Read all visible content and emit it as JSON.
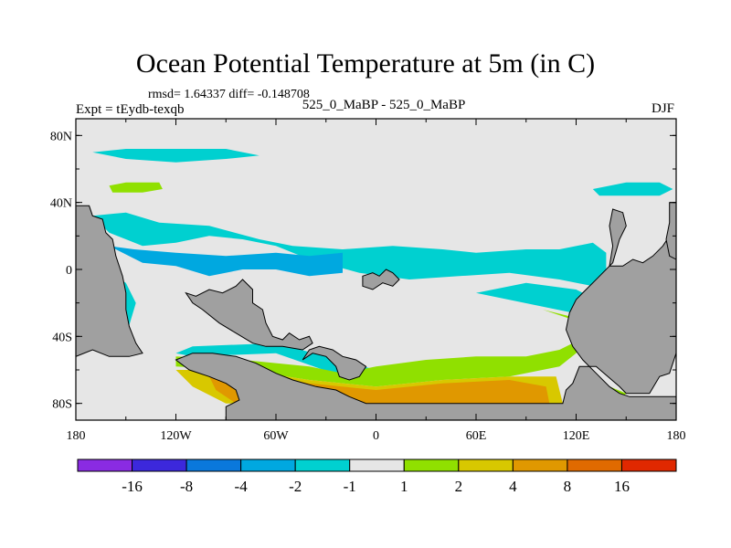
{
  "title": "Ocean Potential Temperature at 5m (in C)",
  "stats": "rmsd= 1.64337 diff= -0.148708",
  "expt": "Expt = tEydb-texqb",
  "case": "525_0_MaBP - 525_0_MaBP",
  "season": "DJF",
  "map": {
    "lon_range": [
      -180,
      180
    ],
    "lat_range": [
      -90,
      90
    ],
    "lon_ticks": [
      {
        "value": -180,
        "label": "180"
      },
      {
        "value": -120,
        "label": "120W"
      },
      {
        "value": -60,
        "label": "60W"
      },
      {
        "value": 0,
        "label": "0"
      },
      {
        "value": 60,
        "label": "60E"
      },
      {
        "value": 120,
        "label": "120E"
      },
      {
        "value": 180,
        "label": "180"
      }
    ],
    "lat_ticks": [
      {
        "value": 80,
        "label": "80N"
      },
      {
        "value": 40,
        "label": "40N"
      },
      {
        "value": 0,
        "label": "0"
      },
      {
        "value": -40,
        "label": "40S"
      },
      {
        "value": -80,
        "label": "80S"
      }
    ],
    "land_color": "#a0a0a0",
    "background_color": "#e6e6e6",
    "land": [
      [
        [
          -180,
          38
        ],
        [
          -172,
          38
        ],
        [
          -170,
          32
        ],
        [
          -164,
          30
        ],
        [
          -162,
          22
        ],
        [
          -158,
          18
        ],
        [
          -156,
          8
        ],
        [
          -152,
          -4
        ],
        [
          -150,
          -14
        ],
        [
          -150,
          -24
        ],
        [
          -148,
          -34
        ],
        [
          -144,
          -44
        ],
        [
          -140,
          -50
        ],
        [
          -148,
          -52
        ],
        [
          -160,
          -52
        ],
        [
          -170,
          -48
        ],
        [
          -180,
          -52
        ]
      ],
      [
        [
          -114,
          -14
        ],
        [
          -108,
          -16
        ],
        [
          -100,
          -12
        ],
        [
          -92,
          -14
        ],
        [
          -84,
          -10
        ],
        [
          -80,
          -6
        ],
        [
          -74,
          -12
        ],
        [
          -74,
          -20
        ],
        [
          -68,
          -24
        ],
        [
          -66,
          -32
        ],
        [
          -62,
          -40
        ],
        [
          -56,
          -42
        ],
        [
          -52,
          -38
        ],
        [
          -46,
          -42
        ],
        [
          -40,
          -40
        ],
        [
          -38,
          -44
        ],
        [
          -44,
          -48
        ],
        [
          -56,
          -46
        ],
        [
          -66,
          -46
        ],
        [
          -74,
          -44
        ],
        [
          -84,
          -38
        ],
        [
          -94,
          -32
        ],
        [
          -104,
          -24
        ],
        [
          -110,
          -20
        ]
      ],
      [
        [
          -120,
          -54
        ],
        [
          -112,
          -60
        ],
        [
          -100,
          -64
        ],
        [
          -90,
          -68
        ],
        [
          -84,
          -72
        ],
        [
          -82,
          -78
        ],
        [
          -86,
          -80
        ],
        [
          -90,
          -82
        ],
        [
          -90,
          -90
        ],
        [
          180,
          -90
        ],
        [
          180,
          -76
        ],
        [
          152,
          -76
        ],
        [
          146,
          -74
        ],
        [
          140,
          -70
        ],
        [
          132,
          -62
        ],
        [
          124,
          -54
        ],
        [
          118,
          -46
        ],
        [
          114,
          -36
        ],
        [
          116,
          -26
        ],
        [
          120,
          -18
        ],
        [
          126,
          -12
        ],
        [
          130,
          -8
        ],
        [
          136,
          -2
        ],
        [
          140,
          2
        ],
        [
          148,
          2
        ],
        [
          154,
          6
        ],
        [
          160,
          4
        ],
        [
          166,
          8
        ],
        [
          172,
          14
        ],
        [
          176,
          20
        ],
        [
          180,
          22
        ],
        [
          180,
          -50
        ],
        [
          176,
          -62
        ],
        [
          170,
          -64
        ],
        [
          164,
          -74
        ],
        [
          150,
          -74
        ],
        [
          146,
          -70
        ],
        [
          132,
          -58
        ],
        [
          122,
          -58
        ],
        [
          118,
          -68
        ],
        [
          114,
          -72
        ],
        [
          112,
          -80
        ],
        [
          -6,
          -80
        ],
        [
          -16,
          -76
        ],
        [
          -24,
          -72
        ],
        [
          -36,
          -70
        ],
        [
          -50,
          -66
        ],
        [
          -60,
          -62
        ],
        [
          -72,
          -56
        ],
        [
          -84,
          -52
        ],
        [
          -98,
          -50
        ],
        [
          -110,
          -50
        ]
      ],
      [
        [
          -44,
          -54
        ],
        [
          -38,
          -50
        ],
        [
          -30,
          -52
        ],
        [
          -24,
          -58
        ],
        [
          -22,
          -64
        ],
        [
          -16,
          -66
        ],
        [
          -10,
          -64
        ],
        [
          -6,
          -58
        ],
        [
          -12,
          -54
        ],
        [
          -20,
          -52
        ],
        [
          -26,
          -48
        ],
        [
          -34,
          -46
        ],
        [
          -40,
          -48
        ]
      ],
      [
        [
          -8,
          -4
        ],
        [
          -2,
          -2
        ],
        [
          2,
          -4
        ],
        [
          6,
          0
        ],
        [
          10,
          -2
        ],
        [
          14,
          -6
        ],
        [
          10,
          -10
        ],
        [
          4,
          -8
        ],
        [
          -2,
          -12
        ],
        [
          -8,
          -10
        ]
      ],
      [
        [
          142,
          36
        ],
        [
          148,
          34
        ],
        [
          150,
          26
        ],
        [
          146,
          18
        ],
        [
          142,
          4
        ],
        [
          140,
          2
        ],
        [
          142,
          14
        ],
        [
          140,
          26
        ]
      ],
      [
        [
          176,
          40
        ],
        [
          180,
          40
        ],
        [
          180,
          6
        ],
        [
          176,
          8
        ],
        [
          174,
          18
        ],
        [
          176,
          28
        ]
      ]
    ],
    "contours": [
      {
        "color": "#00d0d0",
        "points": [
          [
            -170,
            32
          ],
          [
            -160,
            22
          ],
          [
            -150,
            18
          ],
          [
            -140,
            14
          ],
          [
            -120,
            16
          ],
          [
            -100,
            20
          ],
          [
            -80,
            18
          ],
          [
            -60,
            14
          ],
          [
            -40,
            6
          ],
          [
            -10,
            -2
          ],
          [
            20,
            -6
          ],
          [
            50,
            -4
          ],
          [
            80,
            -2
          ],
          [
            110,
            -6
          ],
          [
            130,
            -10
          ],
          [
            138,
            -4
          ],
          [
            138,
            10
          ],
          [
            130,
            16
          ],
          [
            110,
            12
          ],
          [
            90,
            12
          ],
          [
            60,
            10
          ],
          [
            40,
            12
          ],
          [
            10,
            14
          ],
          [
            -20,
            12
          ],
          [
            -50,
            14
          ],
          [
            -70,
            18
          ],
          [
            -100,
            26
          ],
          [
            -130,
            28
          ],
          [
            -150,
            34
          ]
        ]
      },
      {
        "color": "#00a8e0",
        "points": [
          [
            -160,
            14
          ],
          [
            -140,
            4
          ],
          [
            -120,
            2
          ],
          [
            -100,
            -4
          ],
          [
            -80,
            0
          ],
          [
            -60,
            0
          ],
          [
            -40,
            -4
          ],
          [
            -20,
            -2
          ],
          [
            -20,
            10
          ],
          [
            -40,
            8
          ],
          [
            -60,
            10
          ],
          [
            -90,
            8
          ],
          [
            -120,
            10
          ],
          [
            -145,
            12
          ]
        ]
      },
      {
        "color": "#00d0d0",
        "points": [
          [
            -180,
            10
          ],
          [
            -150,
            -8
          ],
          [
            -144,
            -20
          ],
          [
            -150,
            -40
          ],
          [
            -170,
            -42
          ],
          [
            -180,
            -40
          ]
        ]
      },
      {
        "color": "#00d0d0",
        "points": [
          [
            -170,
            70
          ],
          [
            -150,
            66
          ],
          [
            -120,
            64
          ],
          [
            -90,
            66
          ],
          [
            -70,
            68
          ],
          [
            -90,
            72
          ],
          [
            -120,
            72
          ],
          [
            -150,
            72
          ]
        ]
      },
      {
        "color": "#00d0d0",
        "points": [
          [
            130,
            48
          ],
          [
            150,
            52
          ],
          [
            170,
            52
          ],
          [
            178,
            48
          ],
          [
            170,
            44
          ],
          [
            150,
            44
          ],
          [
            134,
            44
          ]
        ]
      },
      {
        "color": "#90e000",
        "points": [
          [
            -160,
            50
          ],
          [
            -150,
            52
          ],
          [
            -130,
            52
          ],
          [
            -128,
            48
          ],
          [
            -140,
            46
          ],
          [
            -158,
            46
          ]
        ]
      },
      {
        "color": "#00d0d0",
        "points": [
          [
            60,
            -14
          ],
          [
            90,
            -8
          ],
          [
            120,
            -12
          ],
          [
            136,
            -20
          ],
          [
            140,
            -28
          ],
          [
            136,
            -36
          ],
          [
            120,
            -48
          ],
          [
            90,
            -54
          ],
          [
            40,
            -56
          ],
          [
            0,
            -60
          ],
          [
            -30,
            -52
          ],
          [
            -60,
            -44
          ],
          [
            -110,
            -46
          ],
          [
            -120,
            -50
          ],
          [
            -110,
            -52
          ],
          [
            -60,
            -50
          ],
          [
            -20,
            -64
          ],
          [
            30,
            -64
          ],
          [
            90,
            -60
          ],
          [
            130,
            -44
          ],
          [
            138,
            -30
          ]
        ]
      },
      {
        "color": "#90e000",
        "points": [
          [
            100,
            -24
          ],
          [
            116,
            -28
          ],
          [
            122,
            -36
          ],
          [
            118,
            -44
          ],
          [
            110,
            -48
          ],
          [
            90,
            -52
          ],
          [
            60,
            -52
          ],
          [
            30,
            -54
          ],
          [
            0,
            -58
          ],
          [
            -20,
            -62
          ],
          [
            -40,
            -58
          ],
          [
            -80,
            -54
          ],
          [
            -120,
            -52
          ],
          [
            -120,
            -58
          ],
          [
            -80,
            -60
          ],
          [
            -40,
            -66
          ],
          [
            0,
            -70
          ],
          [
            40,
            -66
          ],
          [
            80,
            -64
          ],
          [
            110,
            -58
          ],
          [
            120,
            -50
          ],
          [
            124,
            -40
          ],
          [
            118,
            -30
          ]
        ]
      },
      {
        "color": "#d8c800",
        "points": [
          [
            -120,
            -60
          ],
          [
            -80,
            -60
          ],
          [
            -40,
            -66
          ],
          [
            0,
            -70
          ],
          [
            40,
            -66
          ],
          [
            80,
            -64
          ],
          [
            108,
            -64
          ],
          [
            112,
            -80
          ],
          [
            -90,
            -80
          ],
          [
            -110,
            -70
          ]
        ]
      },
      {
        "color": "#e09800",
        "points": [
          [
            -100,
            -64
          ],
          [
            -70,
            -62
          ],
          [
            -40,
            -68
          ],
          [
            0,
            -72
          ],
          [
            40,
            -68
          ],
          [
            80,
            -66
          ],
          [
            102,
            -70
          ],
          [
            104,
            -80
          ],
          [
            -84,
            -80
          ],
          [
            -96,
            -72
          ]
        ]
      },
      {
        "color": "#90e000",
        "points": [
          [
            122,
            -62
          ],
          [
            140,
            -70
          ],
          [
            150,
            -74
          ],
          [
            146,
            -78
          ],
          [
            132,
            -70
          ],
          [
            120,
            -64
          ]
        ]
      }
    ]
  },
  "colorbar": {
    "colors": [
      "#8a2be2",
      "#3c28dc",
      "#0a78dc",
      "#00a8e0",
      "#00d0d0",
      "#e6e6e6",
      "#90e000",
      "#d8c800",
      "#e09800",
      "#e06a00",
      "#e02800"
    ],
    "labels": [
      "-16",
      "-8",
      "-4",
      "-2",
      "-1",
      "1",
      "2",
      "4",
      "8",
      "16"
    ]
  }
}
